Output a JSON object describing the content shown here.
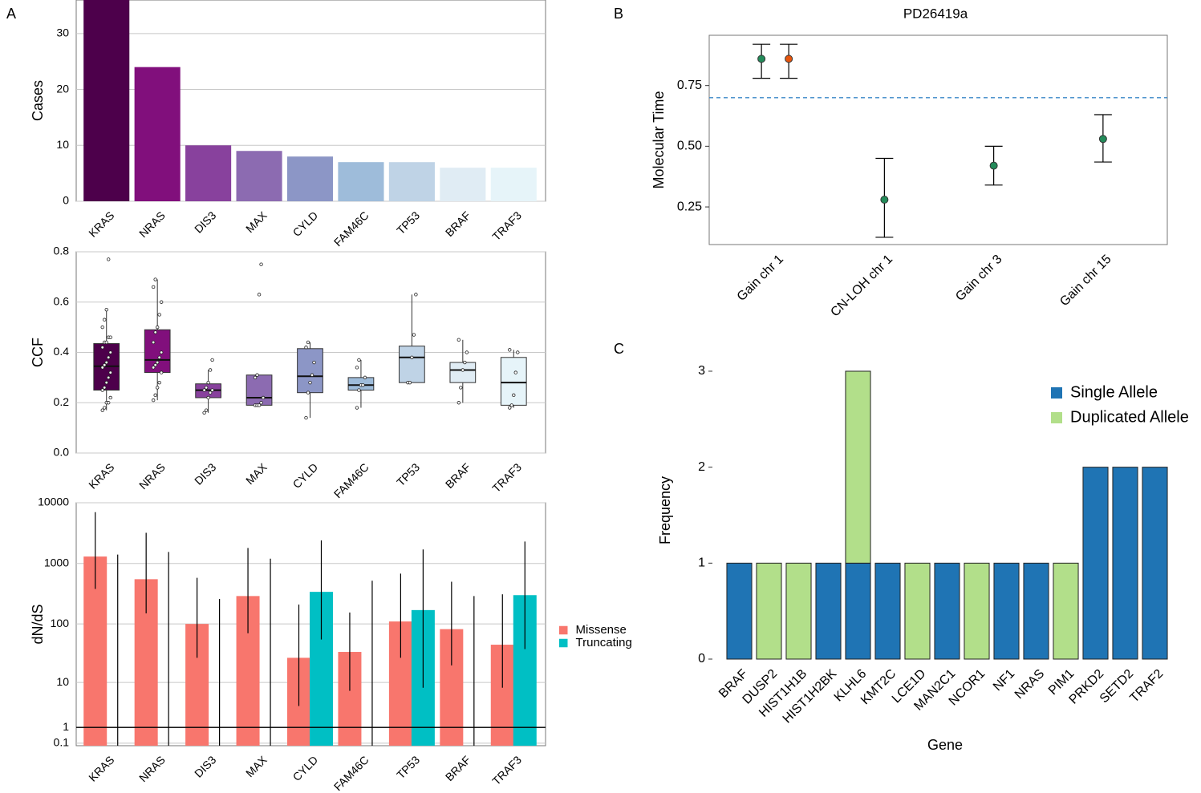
{
  "chart_data": [
    {
      "type": "bar",
      "panel": "A",
      "ylabel": "Cases",
      "categories": [
        "KRAS",
        "NRAS",
        "DIS3",
        "MAX",
        "CYLD",
        "FAM46C",
        "TP53",
        "BRAF",
        "TRAF3"
      ],
      "values": [
        36,
        24,
        10,
        9,
        8,
        7,
        7,
        6,
        6
      ],
      "colors": [
        "#4d004b",
        "#810f7c",
        "#88419d",
        "#8c6bb1",
        "#8c96c6",
        "#9ebcda",
        "#bfd3e6",
        "#e0ecf4",
        "#e6f4f9"
      ],
      "ylim": [
        0,
        36
      ],
      "yticks": [
        0,
        10,
        20,
        30
      ],
      "grid": true
    },
    {
      "type": "box",
      "ylabel": "CCF",
      "categories": [
        "KRAS",
        "NRAS",
        "DIS3",
        "MAX",
        "CYLD",
        "FAM46C",
        "TP53",
        "BRAF",
        "TRAF3"
      ],
      "colors": [
        "#4d004b",
        "#810f7c",
        "#88419d",
        "#8c6bb1",
        "#8c96c6",
        "#9ebcda",
        "#bfd3e6",
        "#e0ecf4",
        "#e6f4f9"
      ],
      "boxes": [
        {
          "min": 0.17,
          "q1": 0.25,
          "median": 0.345,
          "q3": 0.435,
          "max": 0.57,
          "points": [
            0.17,
            0.18,
            0.2,
            0.2,
            0.22,
            0.25,
            0.26,
            0.28,
            0.3,
            0.32,
            0.34,
            0.35,
            0.36,
            0.38,
            0.4,
            0.42,
            0.44,
            0.44,
            0.46,
            0.46,
            0.5,
            0.53,
            0.57,
            0.77
          ]
        },
        {
          "min": 0.21,
          "q1": 0.32,
          "median": 0.37,
          "q3": 0.49,
          "max": 0.69,
          "points": [
            0.21,
            0.23,
            0.26,
            0.28,
            0.32,
            0.34,
            0.35,
            0.36,
            0.38,
            0.4,
            0.44,
            0.48,
            0.5,
            0.55,
            0.6,
            0.66,
            0.69
          ]
        },
        {
          "min": 0.16,
          "q1": 0.22,
          "median": 0.25,
          "q3": 0.275,
          "max": 0.33,
          "points": [
            0.16,
            0.17,
            0.22,
            0.24,
            0.25,
            0.25,
            0.26,
            0.28,
            0.33,
            0.37
          ]
        },
        {
          "min": 0.19,
          "q1": 0.19,
          "median": 0.22,
          "q3": 0.31,
          "max": 0.31,
          "points": [
            0.19,
            0.19,
            0.19,
            0.2,
            0.22,
            0.3,
            0.31,
            0.63,
            0.75
          ]
        },
        {
          "min": 0.14,
          "q1": 0.24,
          "median": 0.305,
          "q3": 0.415,
          "max": 0.44,
          "points": [
            0.14,
            0.24,
            0.28,
            0.31,
            0.36,
            0.42,
            0.44
          ]
        },
        {
          "min": 0.18,
          "q1": 0.25,
          "median": 0.27,
          "q3": 0.3,
          "max": 0.37,
          "points": [
            0.18,
            0.25,
            0.27,
            0.27,
            0.3,
            0.34,
            0.37
          ]
        },
        {
          "min": 0.28,
          "q1": 0.28,
          "median": 0.38,
          "q3": 0.425,
          "max": 0.63,
          "points": [
            0.28,
            0.28,
            0.38,
            0.47,
            0.63
          ]
        },
        {
          "min": 0.2,
          "q1": 0.28,
          "median": 0.33,
          "q3": 0.36,
          "max": 0.45,
          "points": [
            0.2,
            0.26,
            0.33,
            0.36,
            0.4,
            0.45
          ]
        },
        {
          "min": 0.18,
          "q1": 0.19,
          "median": 0.28,
          "q3": 0.38,
          "max": 0.41,
          "points": [
            0.18,
            0.19,
            0.23,
            0.32,
            0.4,
            0.41
          ]
        }
      ],
      "ylim": [
        0,
        0.8
      ],
      "yticks": [
        {
          "value": 0,
          "label": "0.0"
        },
        0.2,
        0.4,
        0.6,
        0.8
      ],
      "grid": true
    },
    {
      "type": "bar",
      "ylabel": "dN/dS",
      "scale": "log1p",
      "categories": [
        "KRAS",
        "NRAS",
        "DIS3",
        "MAX",
        "CYLD",
        "FAM46C",
        "TP53",
        "BRAF",
        "TRAF3"
      ],
      "series": [
        {
          "name": "Missense",
          "color": "#f8766d",
          "values": [
            1300,
            550,
            100,
            290,
            27,
            34,
            110,
            82,
            45
          ],
          "lower": [
            380,
            150,
            27,
            70,
            3.5,
            7,
            27,
            20,
            8
          ],
          "upper": [
            7000,
            3200,
            580,
            1800,
            210,
            155,
            680,
            500,
            310
          ]
        },
        {
          "name": "Truncating",
          "color": "#00bfc4",
          "values": [
            null,
            null,
            null,
            null,
            340,
            null,
            170,
            null,
            300
          ],
          "lower": [
            0,
            0,
            0,
            0,
            55,
            0,
            8,
            0,
            38
          ],
          "upper": [
            1400,
            1550,
            260,
            1200,
            2400,
            520,
            1700,
            290,
            2300
          ]
        }
      ],
      "ylim": [
        0,
        10000
      ],
      "yticks": [
        0.1,
        1,
        10,
        100,
        1000,
        10000
      ],
      "grid": true,
      "hline": 1,
      "hline_color": "#000000",
      "legend": "right"
    },
    {
      "type": "scatter",
      "panel": "B",
      "title": "PD26419a",
      "ylabel": "Molecular Time",
      "categories": [
        "Gain chr 1",
        "CN-LOH chr 1",
        "Gain chr 3",
        "Gain chr 15"
      ],
      "series": [
        {
          "color": "#238b5a",
          "values": [
            0.86,
            0.28,
            0.42,
            0.53
          ],
          "lower": [
            0.78,
            0.125,
            0.34,
            0.435
          ],
          "upper": [
            0.92,
            0.45,
            0.5,
            0.63
          ]
        },
        {
          "color": "#e6550d",
          "values": [
            0.86,
            null,
            null,
            null
          ],
          "lower": [
            0.78,
            null,
            null,
            null
          ],
          "upper": [
            0.92,
            null,
            null,
            null
          ]
        }
      ],
      "ylim": [
        0.095,
        0.957
      ],
      "yticks": [
        0.25,
        {
          "value": 0.5,
          "label": "0.50"
        },
        0.75
      ],
      "grid": false,
      "hline": 0.7,
      "hline_color": "#3a87c8",
      "hline_dashed": true
    },
    {
      "type": "stacked_bar",
      "panel": "C",
      "xlabel": "Gene",
      "ylabel": "Frequency",
      "categories": [
        "BRAF",
        "DUSP2",
        "HIST1H1B",
        "HIST1H2BK",
        "KLHL6",
        "KMT2C",
        "LCE1D",
        "MAN2C1",
        "NCOR1",
        "NF1",
        "NRAS",
        "PIM1",
        "PRKD2",
        "SETD2",
        "TRAF2"
      ],
      "series": [
        {
          "name": "Single Allele",
          "color": "#1f74b4",
          "values": [
            1,
            0,
            0,
            1,
            1,
            1,
            0,
            1,
            0,
            1,
            1,
            0,
            2,
            2,
            2
          ]
        },
        {
          "name": "Duplicated Allele",
          "color": "#b2df8a",
          "values": [
            0,
            1,
            1,
            0,
            2,
            0,
            1,
            0,
            1,
            0,
            0,
            1,
            0,
            0,
            0
          ]
        }
      ],
      "ylim": [
        0,
        3.1
      ],
      "yticks": [
        0,
        1,
        2,
        3
      ],
      "grid": false,
      "legend": "top-right"
    }
  ]
}
